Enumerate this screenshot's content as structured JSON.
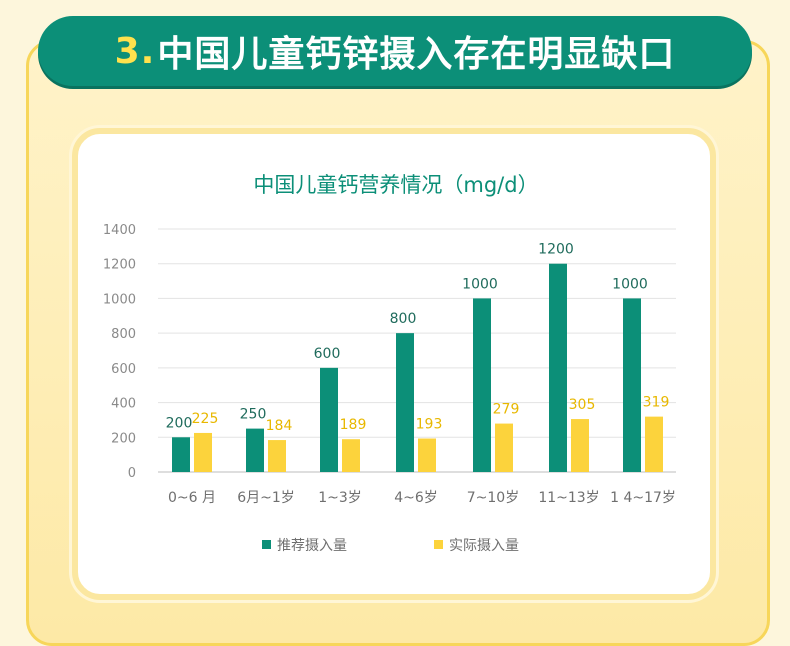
{
  "header": {
    "number": "3.",
    "title": "中国儿童钙锌摄入存在明显缺口"
  },
  "colors": {
    "recommended": "#0c8f78",
    "actual": "#fcd33c",
    "axis_text": "#8a8a8a"
  },
  "chart_data": {
    "type": "bar",
    "title": "中国儿童钙营养情况（mg/d）",
    "categories": [
      "0~6 月",
      "6月~1岁",
      "1~3岁",
      "4~6岁",
      "7~10岁",
      "11~13岁",
      "1 4~17岁"
    ],
    "series": [
      {
        "name": "推荐摄入量",
        "values": [
          200,
          250,
          600,
          800,
          1000,
          1200,
          1000
        ]
      },
      {
        "name": "实际摄入量",
        "values": [
          225,
          184,
          189,
          193,
          279,
          305,
          319
        ]
      }
    ],
    "y_ticks": [
      "0",
      "200",
      "400",
      "600",
      "800",
      "1000",
      "1200",
      "1400"
    ],
    "ylim": [
      0,
      1400
    ],
    "grid": true,
    "legend": "bottom"
  }
}
